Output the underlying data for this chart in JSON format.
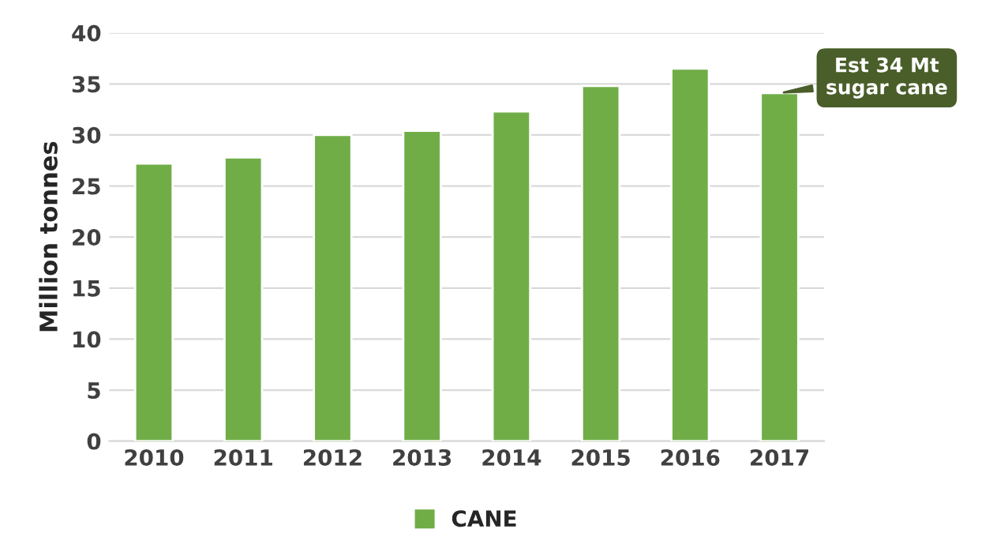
{
  "chart_data": {
    "type": "bar",
    "ylabel": "Million tonnes",
    "categories": [
      "2010",
      "2011",
      "2012",
      "2013",
      "2014",
      "2015",
      "2016",
      "2017"
    ],
    "series": [
      {
        "name": "CANE",
        "color": "#70ad47",
        "values": [
          27.2,
          27.8,
          30.0,
          30.4,
          32.3,
          34.8,
          36.5,
          34.1
        ]
      }
    ],
    "ylim": [
      0,
      40
    ],
    "yticks": [
      0,
      5,
      10,
      15,
      20,
      25,
      30,
      35,
      40
    ],
    "grid": "y",
    "legend": "bottom",
    "annotations": [
      {
        "text": "Est 34 Mt\nsugar cane",
        "x": "2017",
        "y": 34.1
      }
    ]
  }
}
